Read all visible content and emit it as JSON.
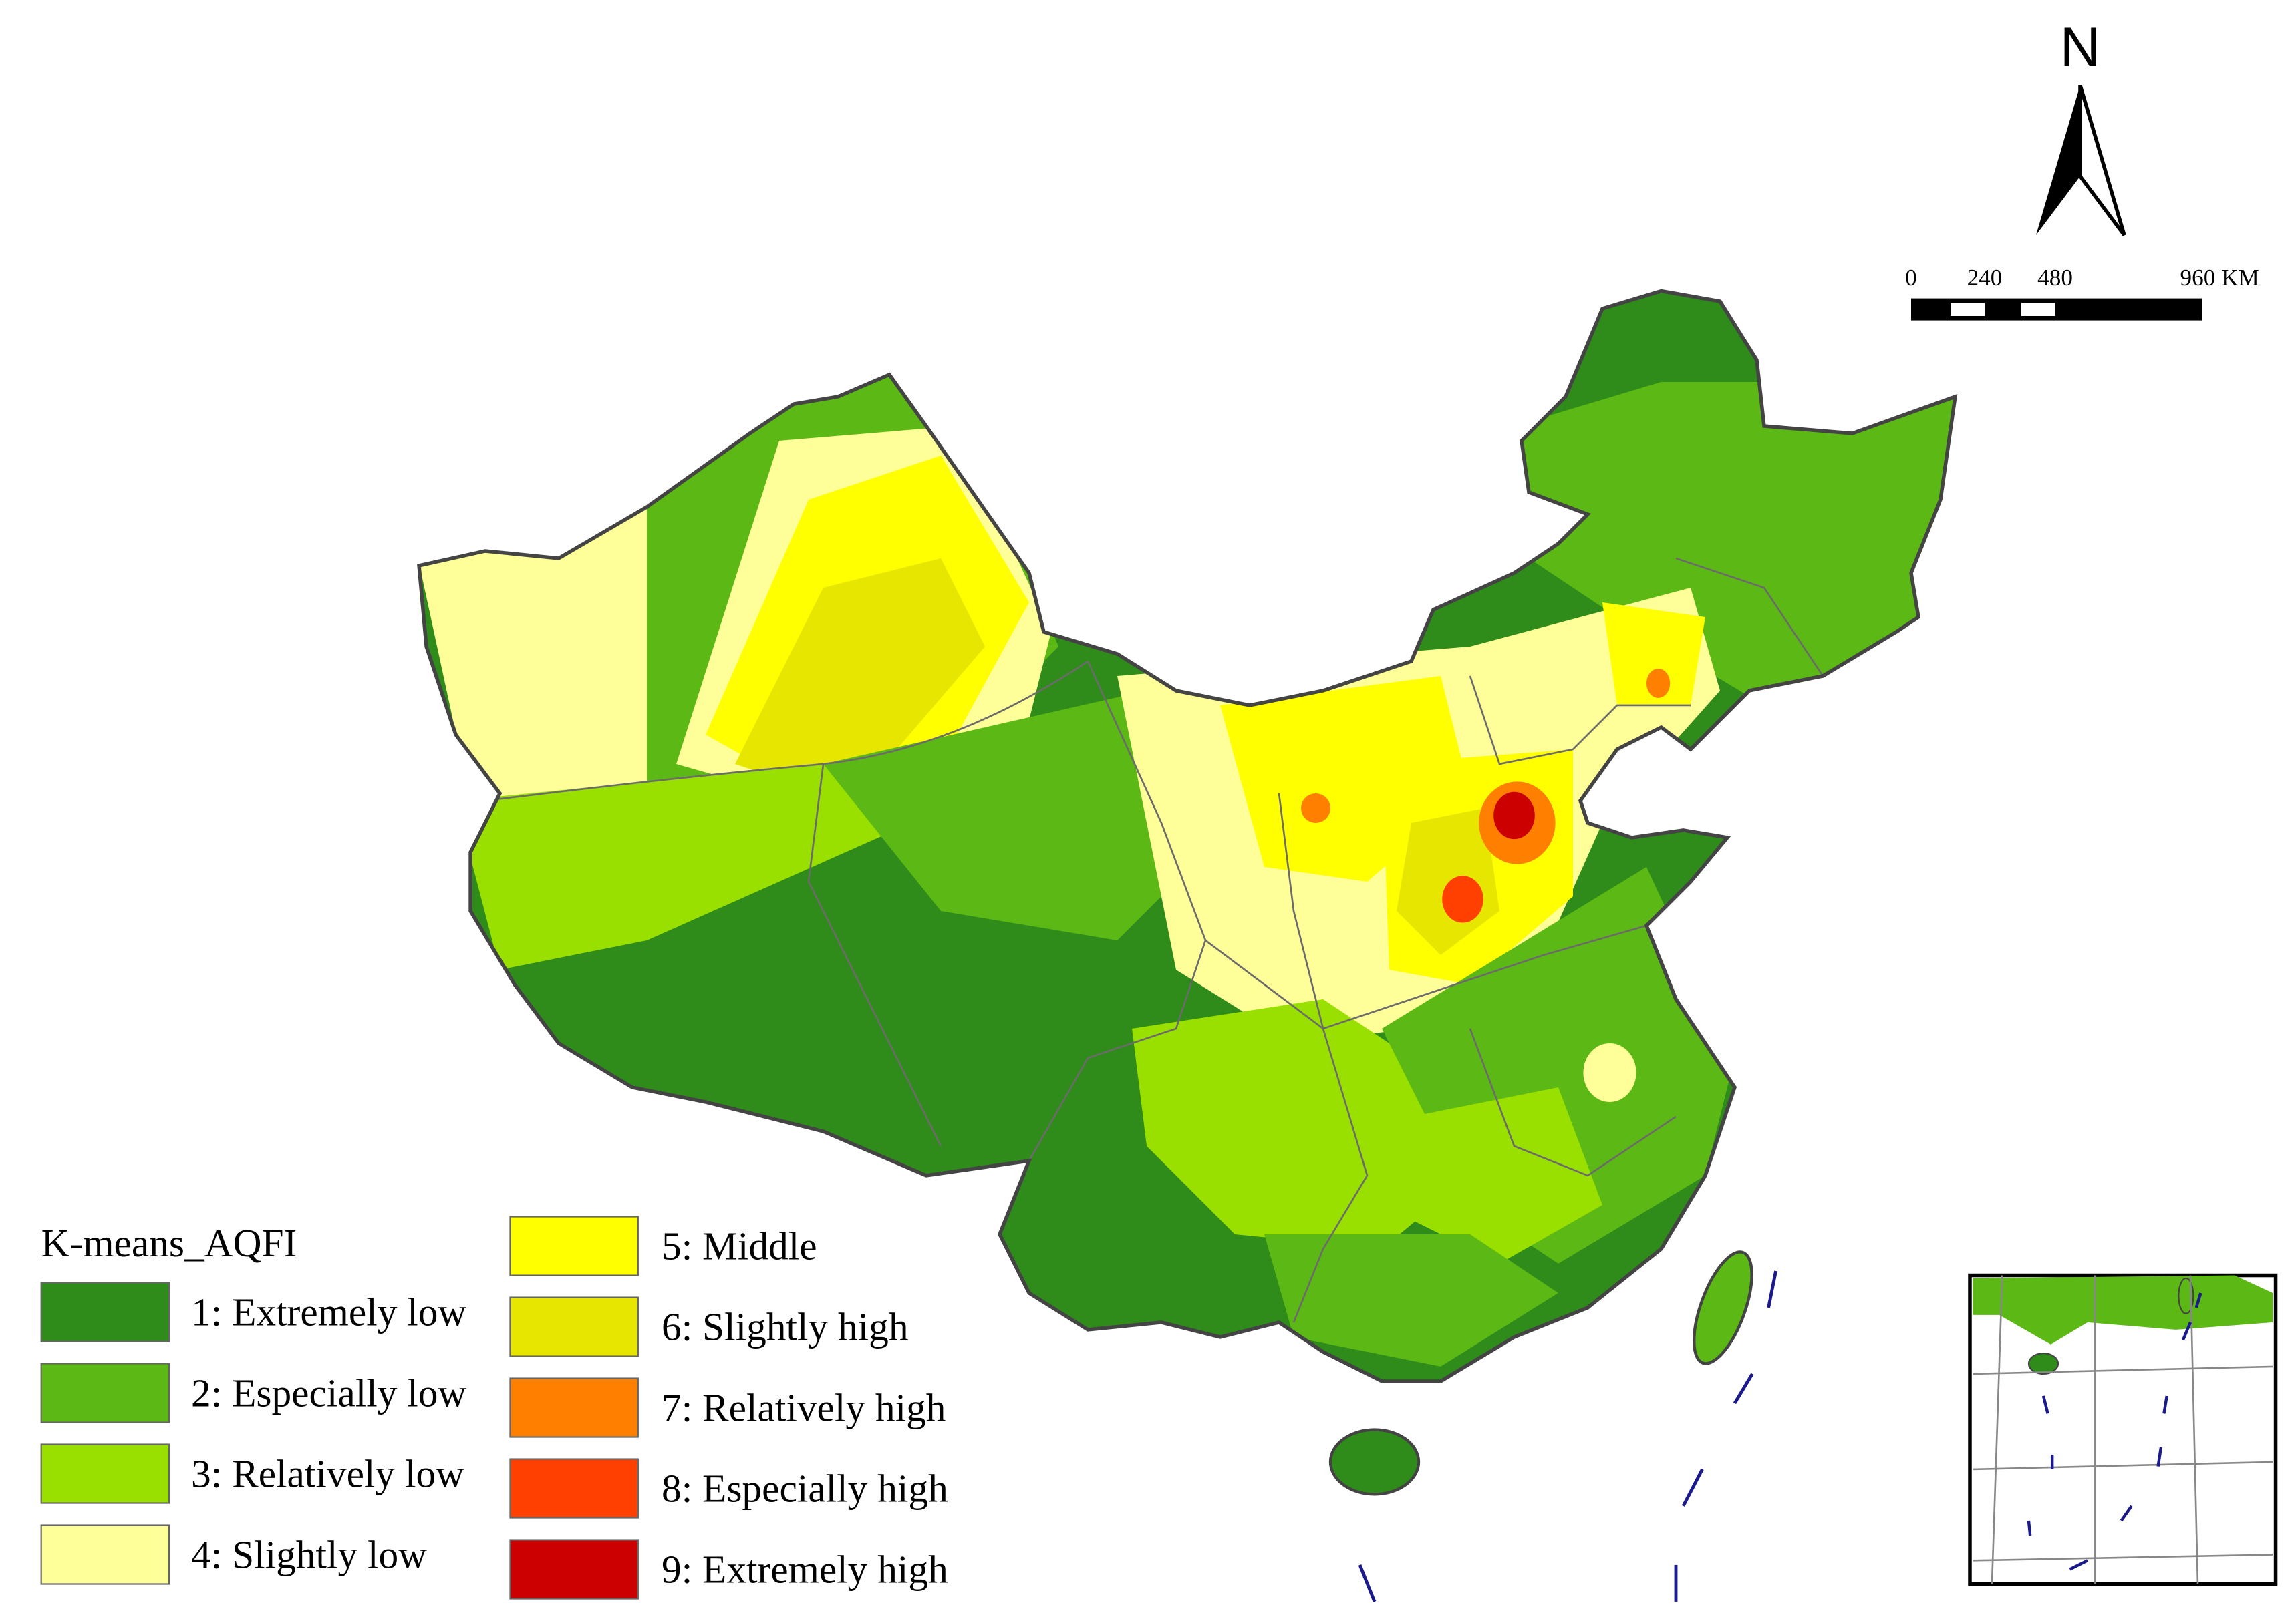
{
  "north_arrow": {
    "label": "N"
  },
  "scale_bar": {
    "labels": [
      "0",
      "240",
      "480",
      "960 KM"
    ]
  },
  "legend": {
    "title": "K-means_AQFI",
    "items": [
      {
        "label": "1: Extremely low",
        "color": "#2f8c1a"
      },
      {
        "label": "2: Especially low",
        "color": "#5cb815"
      },
      {
        "label": "3: Relatively low",
        "color": "#99e000"
      },
      {
        "label": "4: Slightly low",
        "color": "#ffff99"
      },
      {
        "label": "5: Middle",
        "color": "#ffff00"
      },
      {
        "label": "6: Slightly high",
        "color": "#e6e600"
      },
      {
        "label": "7: Relatively high",
        "color": "#ff8000"
      },
      {
        "label": "8: Especially high",
        "color": "#ff4000"
      },
      {
        "label": "9: Extremely high",
        "color": "#cc0000"
      }
    ]
  }
}
